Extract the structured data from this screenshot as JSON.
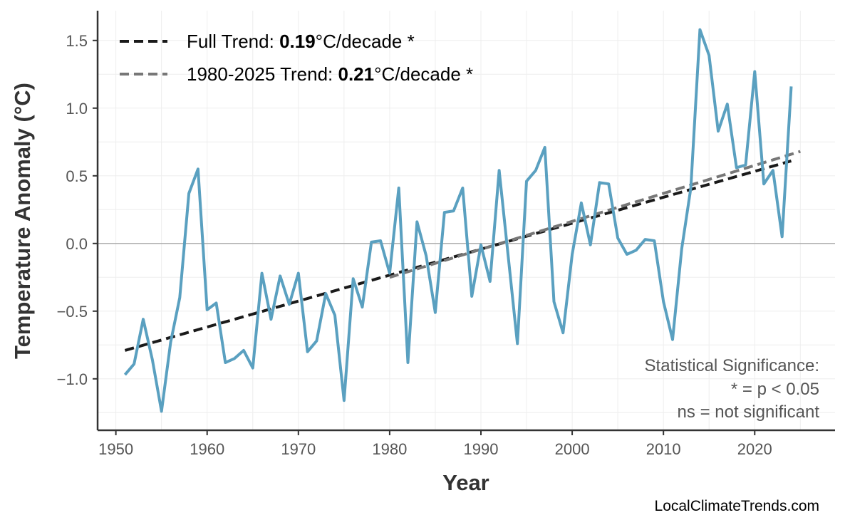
{
  "chart_data": {
    "type": "line",
    "xlabel": "Year",
    "ylabel": "Temperature Anomaly (°C)",
    "xlim": [
      1948,
      2028.8
    ],
    "ylim": [
      -1.38,
      1.72
    ],
    "x_ticks": [
      1950,
      1960,
      1970,
      1980,
      1990,
      2000,
      2010,
      2020
    ],
    "y_ticks": [
      -1.0,
      -0.5,
      0.0,
      0.5,
      1.0,
      1.5
    ],
    "y_tick_labels": [
      "−1.0",
      "−0.5",
      "0.0",
      "0.5",
      "1.0",
      "1.5"
    ],
    "grid": true,
    "colors": {
      "series": "#5aa0c0",
      "full_trend": "#1a1a1a",
      "recent_trend": "#777777",
      "zero_line": "#b0b0b0",
      "grid": "#eeeeee"
    },
    "series": [
      {
        "x": [
          1951,
          1952,
          1953,
          1954,
          1955,
          1956,
          1957,
          1958,
          1959,
          1960,
          1961,
          1962,
          1963,
          1964,
          1965,
          1966,
          1967,
          1968,
          1969,
          1970,
          1971,
          1972,
          1973,
          1974,
          1975,
          1976,
          1977,
          1978,
          1979,
          1980,
          1981,
          1982,
          1983,
          1984,
          1985,
          1986,
          1987,
          1988,
          1989,
          1990,
          1991,
          1992,
          1993,
          1994,
          1995,
          1996,
          1997,
          1998,
          1999,
          2000,
          2001,
          2002,
          2003,
          2004,
          2005,
          2006,
          2007,
          2008,
          2009,
          2010,
          2011,
          2012,
          2013,
          2014,
          2015,
          2016,
          2017,
          2018,
          2019,
          2020,
          2021,
          2022,
          2023,
          2024
        ],
        "y": [
          -0.97,
          -0.89,
          -0.56,
          -0.86,
          -1.24,
          -0.73,
          -0.4,
          0.37,
          0.55,
          -0.49,
          -0.44,
          -0.88,
          -0.85,
          -0.79,
          -0.92,
          -0.22,
          -0.56,
          -0.24,
          -0.45,
          -0.22,
          -0.8,
          -0.72,
          -0.37,
          -0.53,
          -1.16,
          -0.26,
          -0.47,
          0.01,
          0.02,
          -0.22,
          0.41,
          -0.88,
          0.16,
          -0.09,
          -0.51,
          0.23,
          0.24,
          0.41,
          -0.39,
          -0.01,
          -0.28,
          0.54,
          -0.1,
          -0.74,
          0.46,
          0.54,
          0.71,
          -0.43,
          -0.66,
          -0.08,
          0.3,
          -0.01,
          0.45,
          0.44,
          0.04,
          -0.08,
          -0.05,
          0.03,
          0.02,
          -0.43,
          -0.71,
          -0.04,
          0.41,
          1.58,
          1.39,
          0.83,
          1.03,
          0.56,
          0.58,
          1.27,
          0.44,
          0.54,
          0.05,
          1.16
        ]
      }
    ],
    "trends": [
      {
        "label_prefix": "Full Trend: ",
        "value": "0.19",
        "label_suffix": "°C/decade *",
        "x": [
          1951,
          2024
        ],
        "y": [
          -0.79,
          0.61
        ],
        "style": "dashed"
      },
      {
        "label_prefix": "1980-2025 Trend: ",
        "value": "0.21",
        "label_suffix": "°C/decade *",
        "x": [
          1980,
          2025
        ],
        "y": [
          -0.25,
          0.68
        ],
        "style": "dashed"
      }
    ],
    "reference_line": {
      "y": 0.0
    },
    "legend_position": "top-left",
    "annotation": [
      "Statistical Significance:",
      "* = p < 0.05",
      "ns = not significant"
    ]
  },
  "watermark": "LocalClimateTrends.com"
}
